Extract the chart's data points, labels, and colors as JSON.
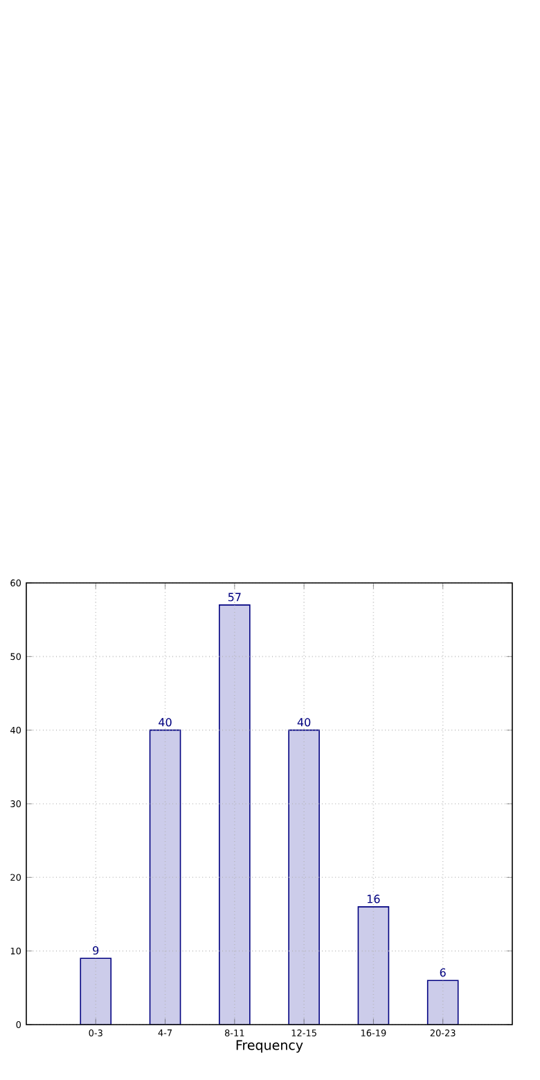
{
  "chart_data": {
    "type": "bar",
    "xlabel": "Frequency",
    "categories": [
      "0-3",
      "4-7",
      "8-11",
      "12-15",
      "16-19",
      "20-23"
    ],
    "values": [
      9,
      40,
      57,
      40,
      16,
      6
    ],
    "color": "#ccccea",
    "ylim": [
      0,
      60
    ],
    "yticks": [
      0,
      10,
      20,
      30,
      40,
      50,
      60
    ],
    "grid": true,
    "data_labels": true
  }
}
